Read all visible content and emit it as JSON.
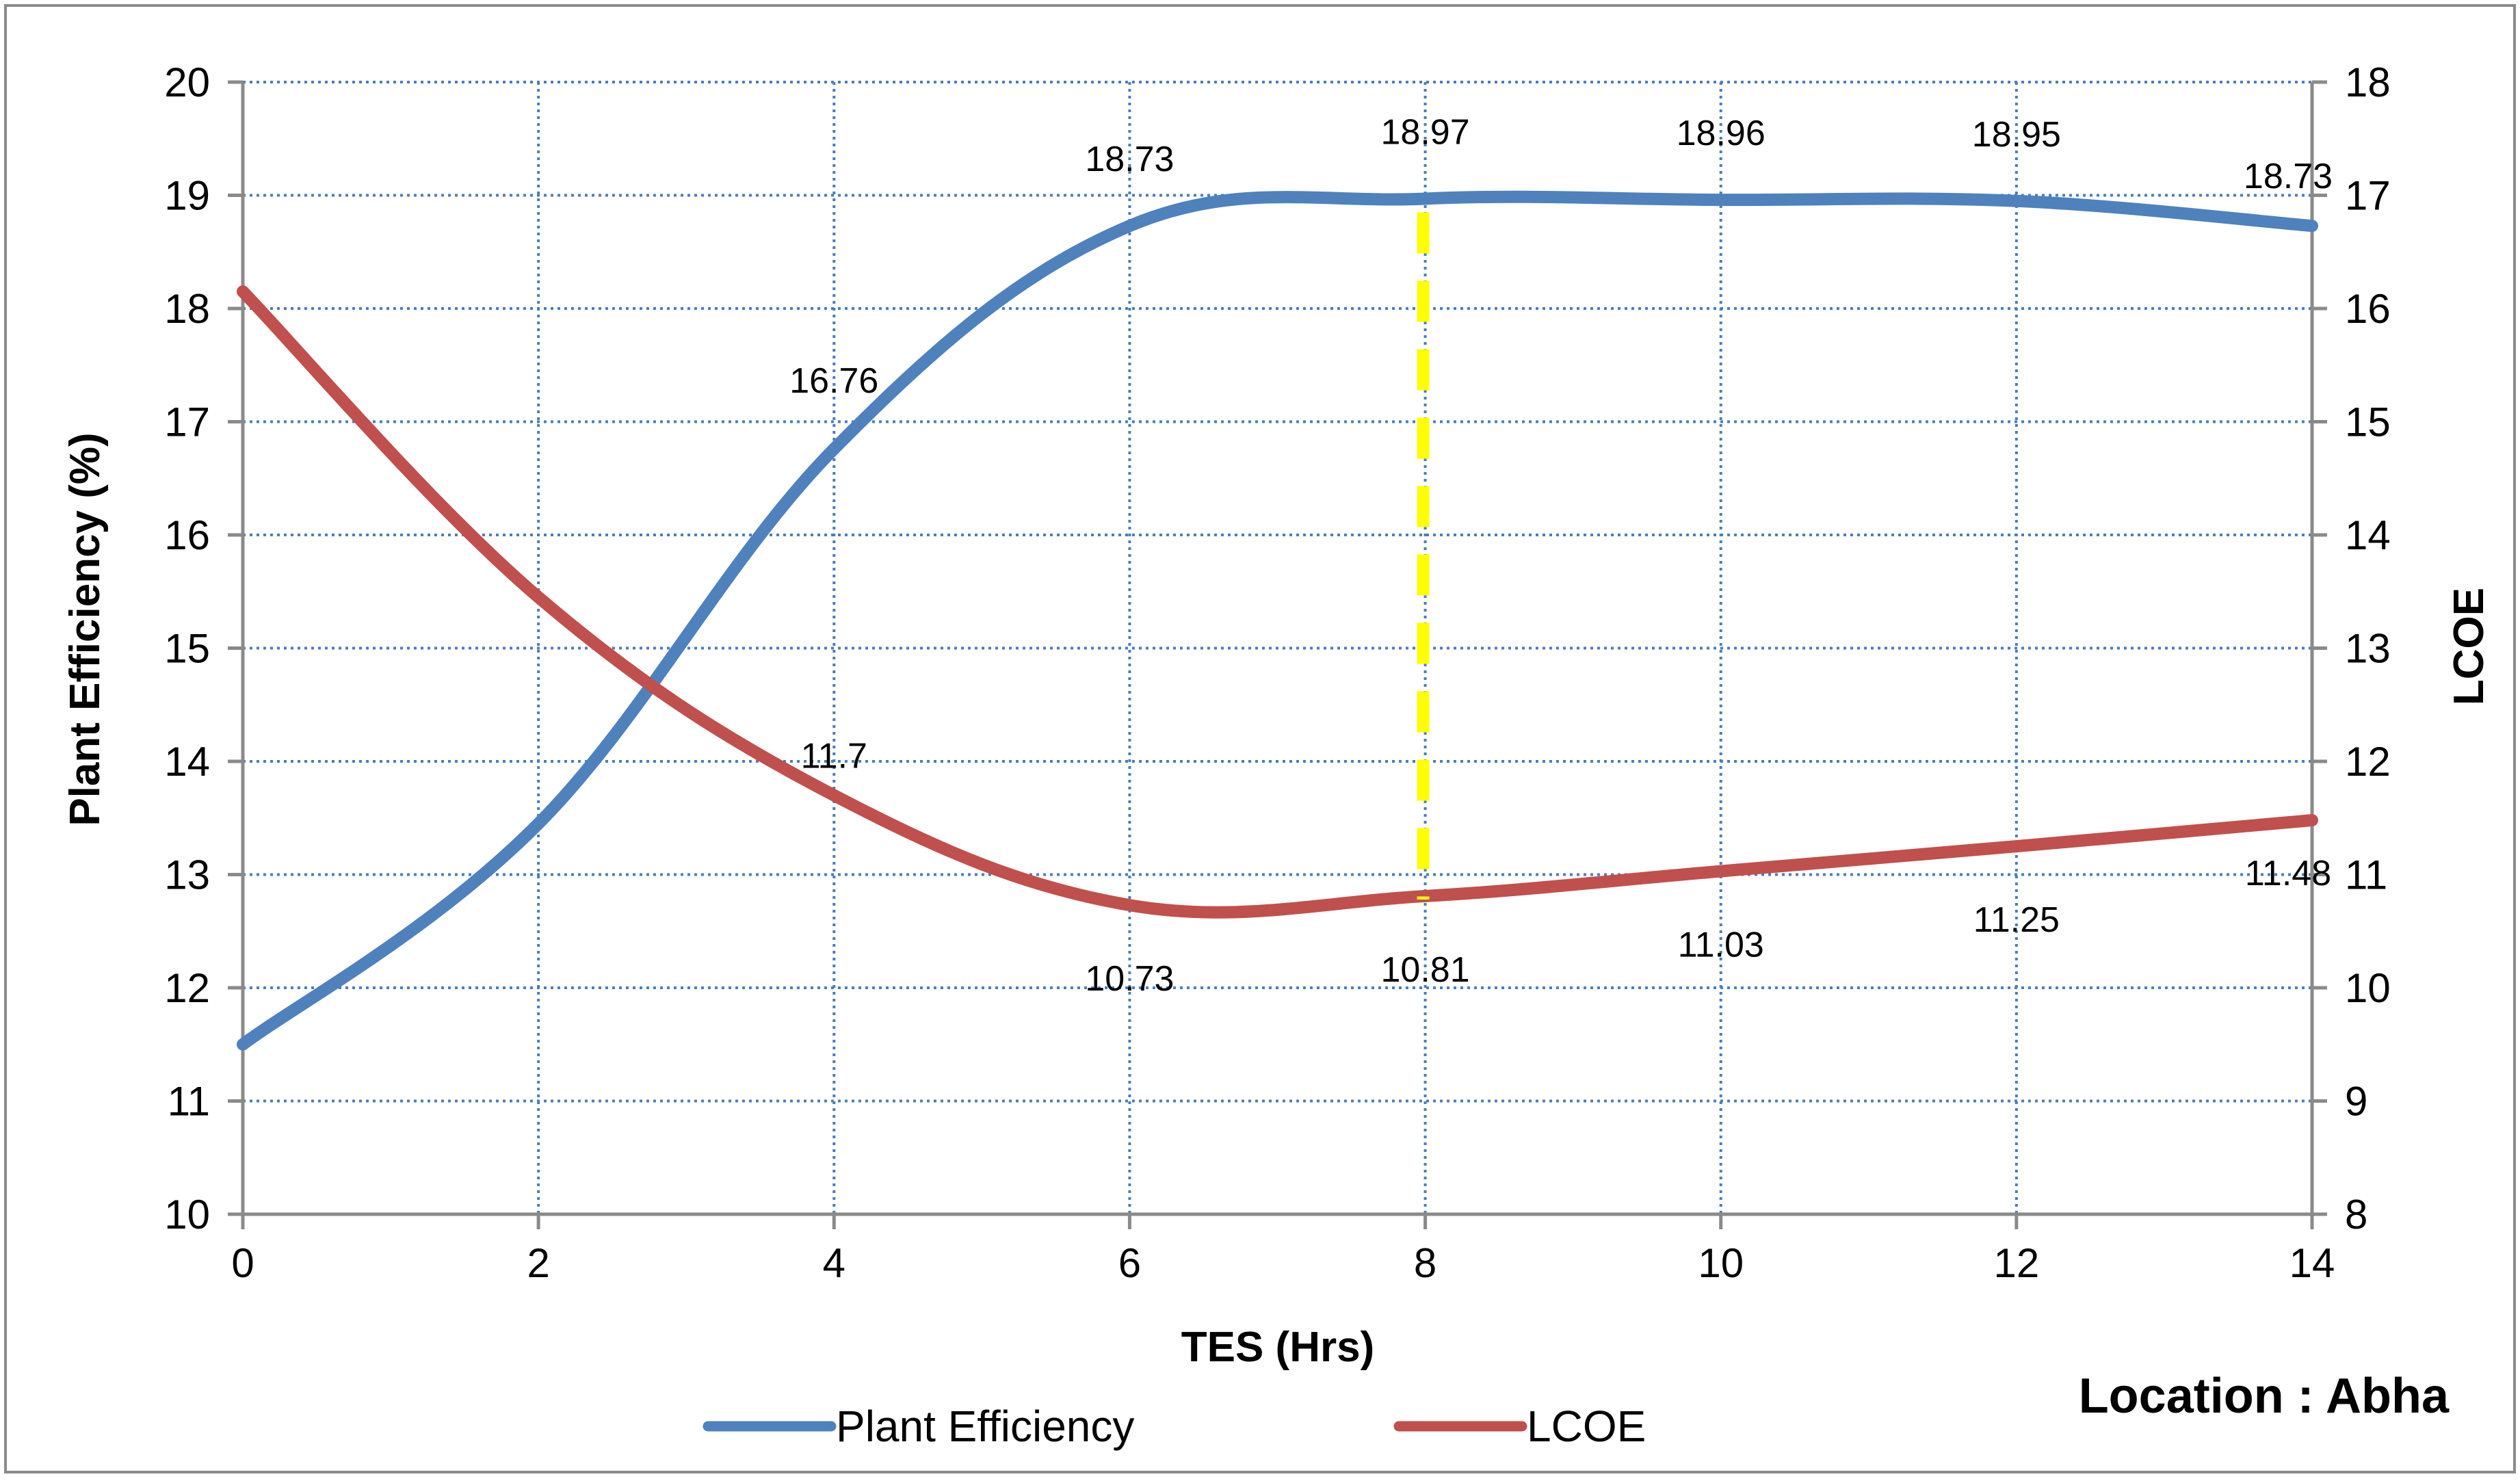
{
  "chart_data": {
    "type": "line",
    "title": "",
    "x": [
      0,
      2,
      4,
      6,
      8,
      10,
      12,
      14
    ],
    "xlabel": "TES (Hrs)",
    "xlim": [
      0,
      14
    ],
    "xticks": [
      0,
      2,
      4,
      6,
      8,
      10,
      12,
      14
    ],
    "y_left": {
      "label": "Plant Efficiency (%)",
      "lim": [
        10,
        20
      ],
      "ticks": [
        10,
        11,
        12,
        13,
        14,
        15,
        16,
        17,
        18,
        19,
        20
      ]
    },
    "y_right": {
      "label": "LCOE",
      "lim": [
        8,
        18
      ],
      "ticks": [
        8,
        9,
        10,
        11,
        12,
        13,
        14,
        15,
        16,
        17,
        18
      ]
    },
    "grid": true,
    "series": [
      {
        "name": "Plant Efficiency",
        "axis": "left",
        "color": "#4f81bd",
        "values": [
          11.5,
          13.45,
          16.76,
          18.73,
          18.97,
          18.96,
          18.95,
          18.73
        ],
        "data_labels": [
          {
            "x": 4,
            "text": "16.76"
          },
          {
            "x": 6,
            "text": "18.73"
          },
          {
            "x": 8,
            "text": "18.97"
          },
          {
            "x": 10,
            "text": "18.96"
          },
          {
            "x": 12,
            "text": "18.95"
          },
          {
            "x": 14,
            "text": "18.73"
          }
        ]
      },
      {
        "name": "LCOE",
        "axis": "right",
        "color": "#c0504d",
        "values": [
          16.15,
          13.45,
          11.7,
          10.73,
          10.81,
          11.03,
          11.25,
          11.48
        ],
        "data_labels": [
          {
            "x": 4,
            "text": "11.7"
          },
          {
            "x": 6,
            "text": "10.73"
          },
          {
            "x": 8,
            "text": "10.81"
          },
          {
            "x": 10,
            "text": "11.03"
          },
          {
            "x": 12,
            "text": "11.25"
          },
          {
            "x": 14,
            "text": "11.48"
          }
        ]
      }
    ],
    "marker_line": {
      "x": 8,
      "color": "#ffff00",
      "style": "dashed"
    },
    "legend": {
      "placement": "bottom"
    },
    "annotation": "Location : Abha"
  }
}
